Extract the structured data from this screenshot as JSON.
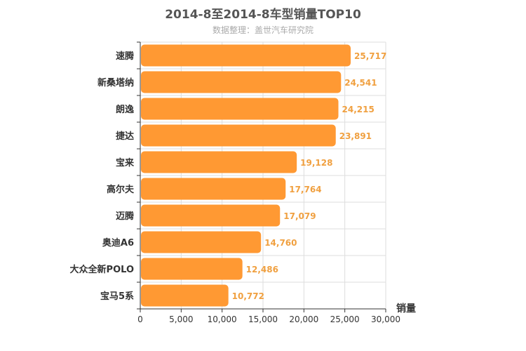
{
  "chart_data": {
    "type": "bar",
    "orientation": "horizontal",
    "title": "2014-8至2014-8车型销量TOP10",
    "subtitle": "数据整理：盖世汽车研究院",
    "categories": [
      "速腾",
      "新桑塔纳",
      "朗逸",
      "捷达",
      "宝来",
      "高尔夫",
      "迈腾",
      "奥迪A6",
      "大众全新POLO",
      "宝马5系"
    ],
    "values": [
      25717,
      24541,
      24215,
      23891,
      19128,
      17764,
      17079,
      14760,
      12486,
      10772
    ],
    "value_labels": [
      "25,717",
      "24,541",
      "24,215",
      "23,891",
      "19,128",
      "17,764",
      "17,079",
      "14,760",
      "12,486",
      "10,772"
    ],
    "xlabel": "销量",
    "ylabel": "",
    "xlim": [
      0,
      30000
    ],
    "ticks": [
      0,
      5000,
      10000,
      15000,
      20000,
      25000,
      30000
    ],
    "tick_labels": [
      "0",
      "5,000",
      "10,000",
      "15,000",
      "20,000",
      "25,000",
      "30,000"
    ],
    "grid": true,
    "colors": {
      "bar": "#ff9933",
      "value_label": "#f0a040",
      "grid": "#dddddd",
      "axis": "#333333"
    }
  }
}
